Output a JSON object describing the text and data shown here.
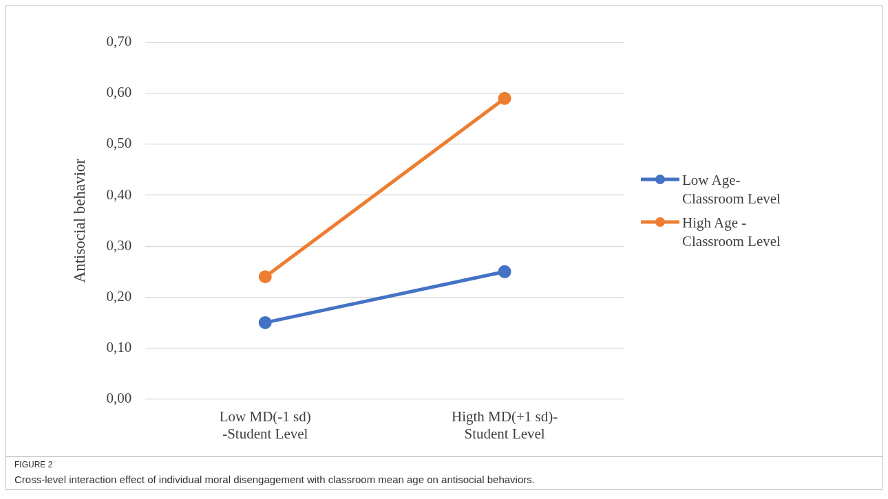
{
  "chart_data": {
    "type": "line",
    "ylabel": "Antisocial behavior",
    "categories": [
      "Low MD(-1 sd)\n-Student Level",
      "Higth MD(+1 sd)-\nStudent Level"
    ],
    "series": [
      {
        "name": "Low Age-\nClassroom Level",
        "color": "#4472c4",
        "values": [
          0.15,
          0.25
        ]
      },
      {
        "name": "High Age -\nClassroom Level",
        "color": "#ed7d31",
        "values": [
          0.24,
          0.59
        ]
      }
    ],
    "ylim": [
      0,
      0.7
    ],
    "yticks": [
      {
        "value": 0,
        "label": "0,00"
      },
      {
        "value": 0.1,
        "label": "0,10"
      },
      {
        "value": 0.2,
        "label": "0,20"
      },
      {
        "value": 0.3,
        "label": "0,30"
      },
      {
        "value": 0.4,
        "label": "0,40"
      },
      {
        "value": 0.5,
        "label": "0,50"
      },
      {
        "value": 0.6,
        "label": "0,60"
      },
      {
        "value": 0.7,
        "label": "0,70"
      }
    ],
    "grid": "y",
    "legend": "right",
    "marker": "circle",
    "line_style": "solid",
    "annotations": [
      "FIGURE 2",
      "Cross-level interaction effect of individual moral disengagement with classroom mean age on antisocial behaviors."
    ]
  }
}
